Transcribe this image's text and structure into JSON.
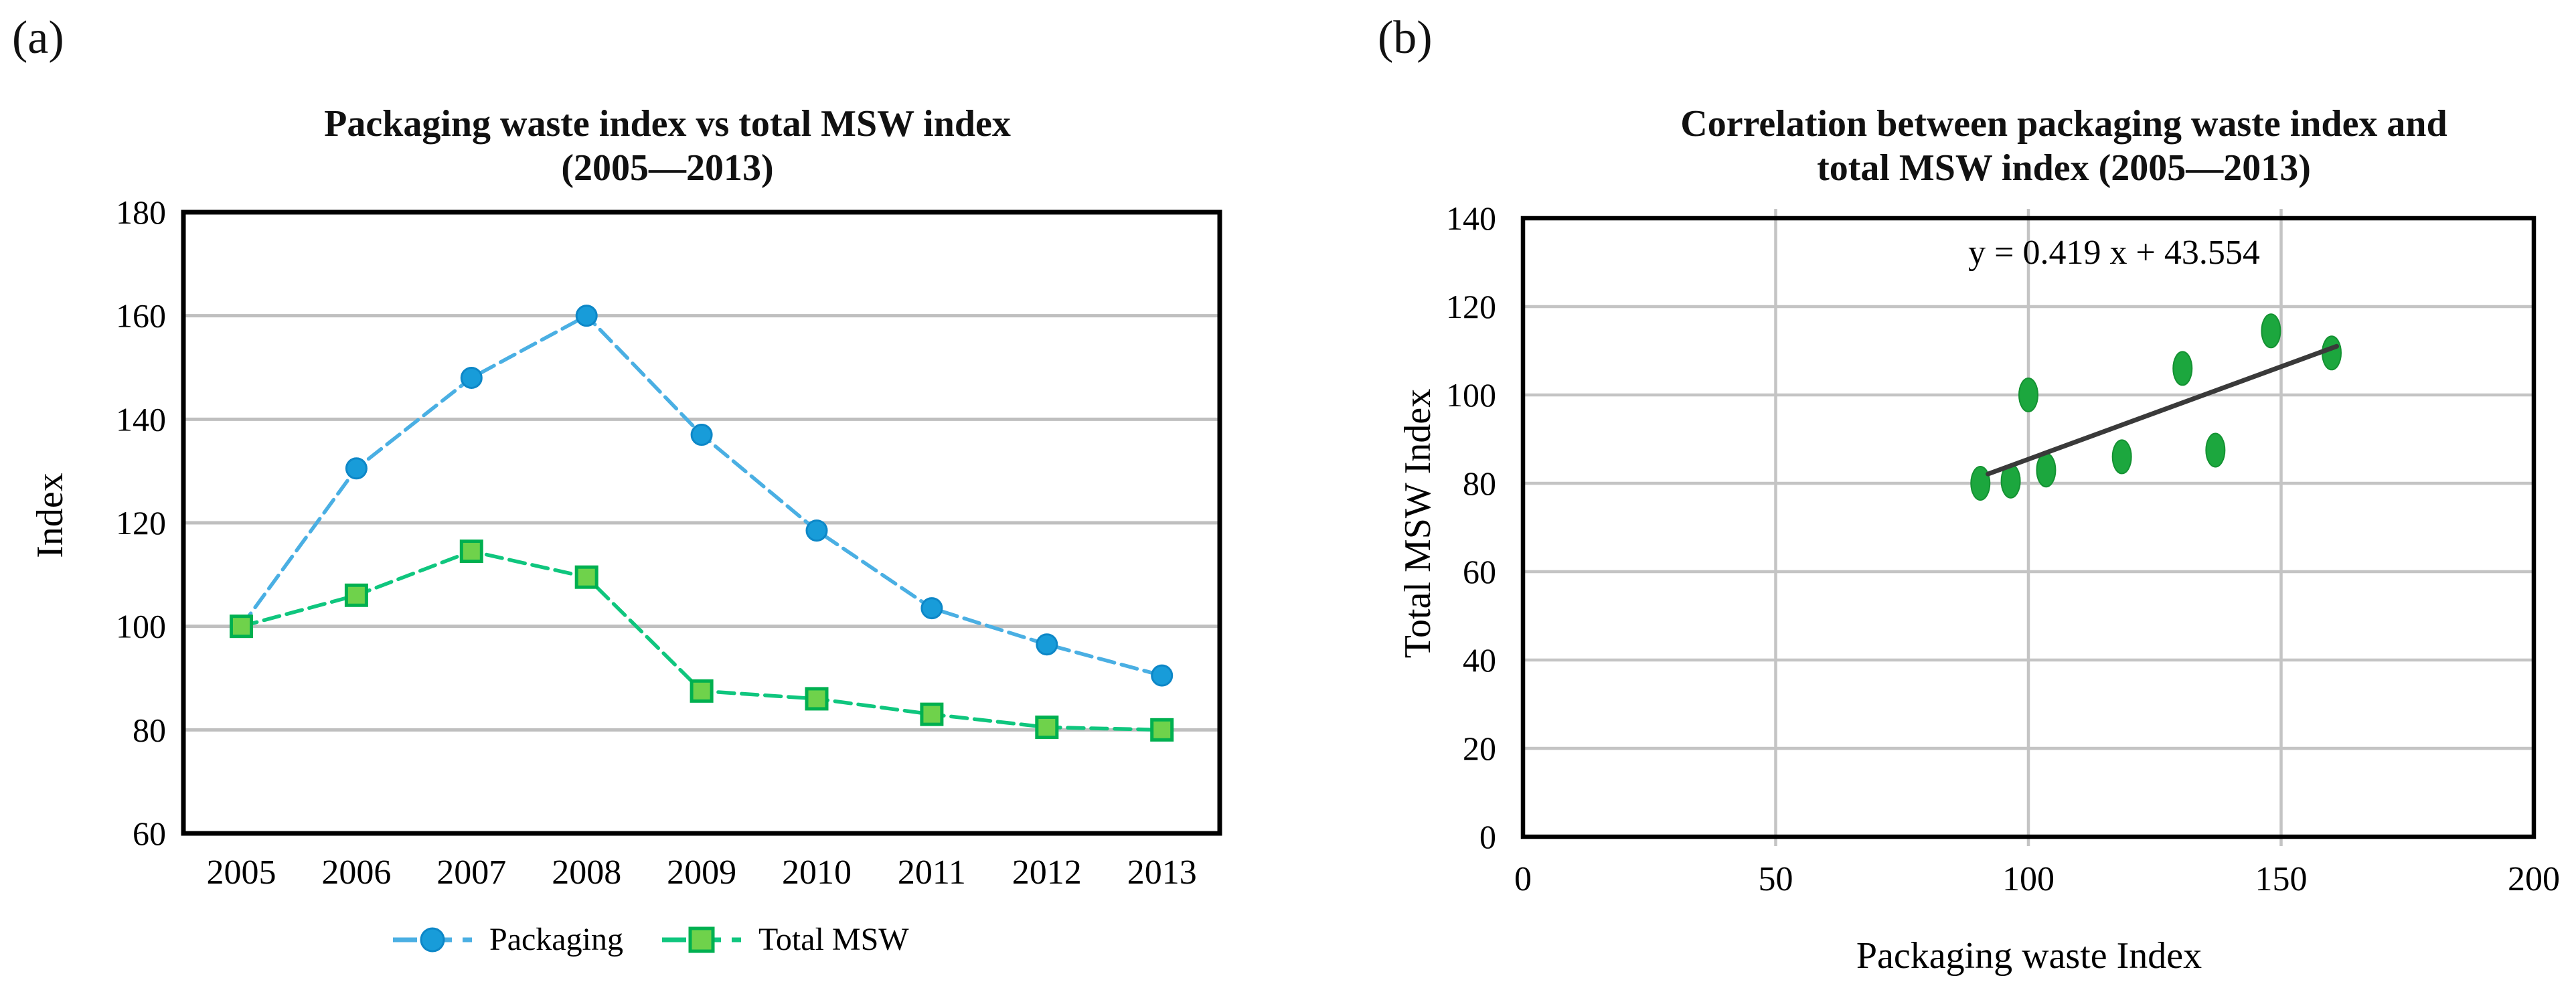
{
  "figure": {
    "panel_a_label": "(a)",
    "panel_b_label": "(b)"
  },
  "panel_a": {
    "title_line1": "Packaging waste index vs total MSW index",
    "title_line2": "(2005—2013)",
    "y_axis_title": "Index"
  },
  "panel_b": {
    "title_line1": "Correlation between packaging waste index and",
    "title_line2": "total MSW index (2005—2013)",
    "y_axis_title": "Total MSW Index",
    "x_axis_title": "Packaging waste Index",
    "equation_label": "y = 0.419 x + 43.554"
  },
  "chart_data": [
    {
      "type": "line",
      "title": "Packaging waste index vs total MSW index (2005—2013)",
      "categories": [
        "2005",
        "2006",
        "2007",
        "2008",
        "2009",
        "2010",
        "2011",
        "2012",
        "2013"
      ],
      "series": [
        {
          "name": "Packaging",
          "marker": "circle",
          "values": [
            100,
            130.5,
            148,
            160,
            137,
            118.5,
            103.5,
            96.5,
            90.5
          ],
          "line_color": "#4AAFE3",
          "marker_fill": "#189CD9",
          "marker_stroke": "#0D87C7"
        },
        {
          "name": "Total MSW",
          "marker": "square",
          "values": [
            100,
            106,
            114.5,
            109.5,
            87.5,
            86,
            83,
            80.5,
            80
          ],
          "line_color": "#0FC67E",
          "marker_fill": "#6FD24B",
          "marker_stroke": "#00B050"
        }
      ],
      "xlabel": "",
      "ylabel": "Index",
      "ylim": [
        60,
        180
      ],
      "yticks": [
        60,
        80,
        100,
        120,
        140,
        160,
        180
      ],
      "gridlines_y": [
        80,
        100,
        120,
        140,
        160
      ],
      "grid_color": "#BFBFBF",
      "border_color": "#000000",
      "legend_position": "bottom"
    },
    {
      "type": "scatter",
      "title": "Correlation between packaging waste index and total MSW index (2005—2013)",
      "xlabel": "Packaging waste Index",
      "ylabel": "Total MSW Index",
      "xlim": [
        0,
        200
      ],
      "ylim": [
        0,
        140
      ],
      "xticks": [
        0,
        50,
        100,
        150,
        200
      ],
      "yticks": [
        0,
        20,
        40,
        60,
        80,
        100,
        120,
        140
      ],
      "gridlines_x": [
        50,
        100,
        150
      ],
      "gridlines_y": [
        20,
        40,
        60,
        80,
        100,
        120
      ],
      "points": [
        [
          100,
          100
        ],
        [
          130.5,
          106
        ],
        [
          148,
          114.5
        ],
        [
          160,
          109.5
        ],
        [
          137,
          87.5
        ],
        [
          118.5,
          86
        ],
        [
          103.5,
          83
        ],
        [
          96.5,
          80.5
        ],
        [
          90.5,
          80
        ]
      ],
      "point_color": "#1CA73E",
      "point_stroke": "#149232",
      "trendline": {
        "label": "y = 0.419 x + 43.554",
        "slope": 0.419,
        "intercept": 43.554,
        "x_start": 92,
        "x_end": 161,
        "color": "#3A3A3A"
      },
      "grid_color": "#C4C4C4",
      "border_color": "#000000",
      "legend_position": "none"
    }
  ]
}
